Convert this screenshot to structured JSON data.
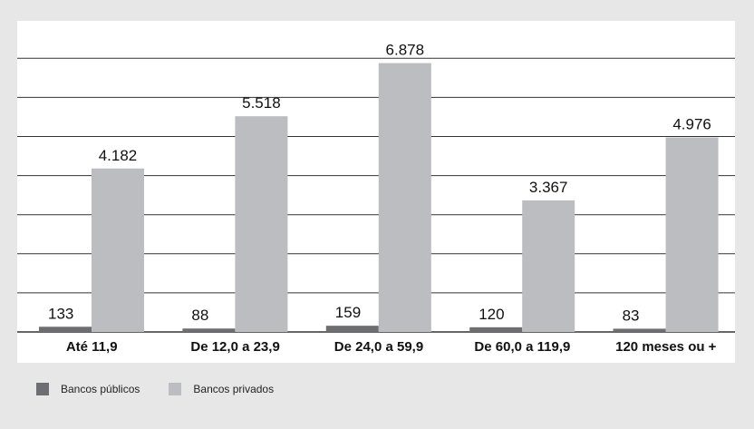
{
  "chart_data": {
    "type": "bar",
    "categories": [
      "Até 11,9",
      "De 12,0 a 23,9",
      "De 24,0 a 59,9",
      "De 60,0 a 119,9",
      "120 meses ou +"
    ],
    "series": [
      {
        "name": "Bancos públicos",
        "values": [
          133,
          88,
          159,
          120,
          83
        ],
        "labels": [
          "133",
          "88",
          "159",
          "120",
          "83"
        ],
        "color": "#6d6e71"
      },
      {
        "name": "Bancos privados",
        "values": [
          4182,
          5518,
          6878,
          3367,
          4976
        ],
        "labels": [
          "4.182",
          "5.518",
          "6.878",
          "3.367",
          "4.976"
        ],
        "color": "#bcbdc0"
      }
    ],
    "ylim": [
      0,
      8000
    ],
    "grid": true,
    "legend_position": "bottom-left",
    "title": "",
    "xlabel": "",
    "ylabel": ""
  },
  "colors": {
    "background": "#e7e7e8",
    "plot_background": "#ffffff",
    "gridline": "#333333"
  }
}
